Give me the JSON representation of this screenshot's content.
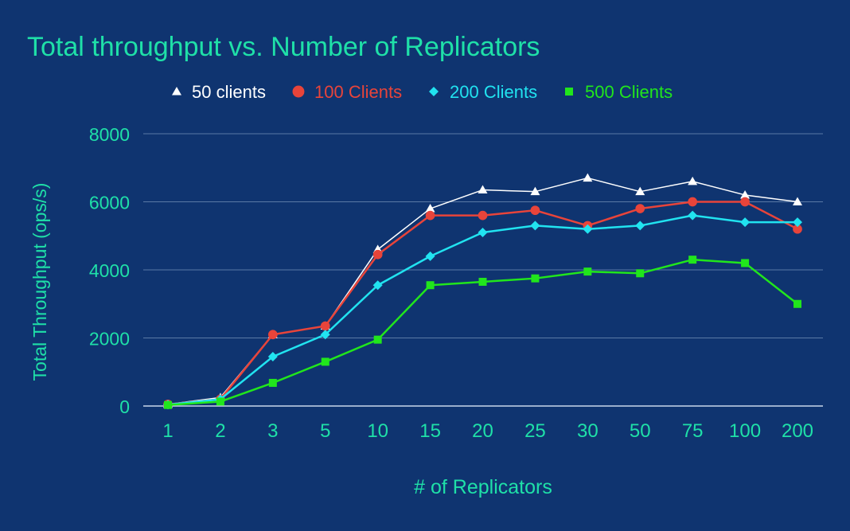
{
  "colors": {
    "background": "#0f3470",
    "text": "#1fe0a8",
    "gridline": "#5a79a6",
    "axis": "#c8d6ea"
  },
  "chart_data": {
    "type": "line",
    "title": "Total throughput vs. Number of Replicators",
    "xlabel": "# of Replicators",
    "ylabel": "Total Throughput (ops/s)",
    "categories": [
      "1",
      "2",
      "3",
      "5",
      "10",
      "15",
      "20",
      "25",
      "30",
      "50",
      "75",
      "100",
      "200"
    ],
    "ylim": [
      0,
      8000
    ],
    "yticks": [
      0,
      2000,
      4000,
      6000,
      8000
    ],
    "grid": true,
    "legend_position": "top",
    "series": [
      {
        "name": "50 clients",
        "color": "#ffffff",
        "marker": "triangle",
        "values": [
          50,
          250,
          2100,
          2350,
          4600,
          5800,
          6350,
          6300,
          6700,
          6300,
          6600,
          6200,
          6000
        ]
      },
      {
        "name": "100 Clients",
        "color": "#e8443a",
        "marker": "circle",
        "values": [
          50,
          200,
          2100,
          2350,
          4450,
          5600,
          5600,
          5750,
          5300,
          5800,
          6000,
          6000,
          5200
        ]
      },
      {
        "name": "200 Clients",
        "color": "#21e3f0",
        "marker": "diamond",
        "values": [
          40,
          200,
          1450,
          2100,
          3550,
          4400,
          5100,
          5300,
          5200,
          5300,
          5600,
          5400,
          5400
        ]
      },
      {
        "name": "500 Clients",
        "color": "#21e61c",
        "marker": "square",
        "values": [
          30,
          130,
          680,
          1300,
          1950,
          3550,
          3650,
          3750,
          3950,
          3900,
          4300,
          4200,
          3000
        ]
      }
    ]
  }
}
